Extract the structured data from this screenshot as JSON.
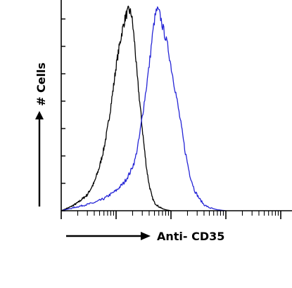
{
  "chart_data": {
    "type": "line",
    "title": "",
    "xlabel": "Anti- CD35",
    "ylabel": "# Cells",
    "xscale": "log",
    "grid": false,
    "legend": "none",
    "series": [
      {
        "color": "#000000",
        "x": [
          1.0,
          1.5,
          2.0,
          3.0,
          4.0,
          5.0,
          6.0,
          7.0,
          8.0,
          9.0,
          10.0,
          11.5,
          13.0,
          15.0,
          17.0,
          19.0,
          20.0,
          22.0,
          24.0,
          27.0,
          30.0,
          33.0,
          36.0,
          40.0,
          45.0,
          50.0,
          60.0,
          70.0,
          80.0,
          100.0
        ],
        "y": [
          0.0,
          0.02,
          0.04,
          0.08,
          0.14,
          0.22,
          0.31,
          0.41,
          0.52,
          0.62,
          0.72,
          0.82,
          0.9,
          0.97,
          1.0,
          0.98,
          0.93,
          0.82,
          0.68,
          0.54,
          0.41,
          0.3,
          0.21,
          0.13,
          0.07,
          0.04,
          0.02,
          0.01,
          0.005,
          0.0
        ]
      },
      {
        "color": "#2525d6",
        "x": [
          1.0,
          2.0,
          4.0,
          6.0,
          10.0,
          14.0,
          18.0,
          22.0,
          26.0,
          30.0,
          35.0,
          40.0,
          45.0,
          50.0,
          55.0,
          60.0,
          65.0,
          70.0,
          80.0,
          90.0,
          100.0,
          120.0,
          150.0,
          180.0,
          220.0,
          270.0,
          330.0,
          400.0,
          500.0,
          700.0,
          1000.0
        ],
        "y": [
          0.0,
          0.02,
          0.04,
          0.06,
          0.1,
          0.14,
          0.19,
          0.25,
          0.35,
          0.47,
          0.6,
          0.72,
          0.85,
          0.95,
          1.0,
          0.99,
          0.96,
          0.92,
          0.86,
          0.8,
          0.72,
          0.6,
          0.44,
          0.3,
          0.18,
          0.1,
          0.06,
          0.03,
          0.015,
          0.005,
          0.0
        ]
      }
    ]
  }
}
